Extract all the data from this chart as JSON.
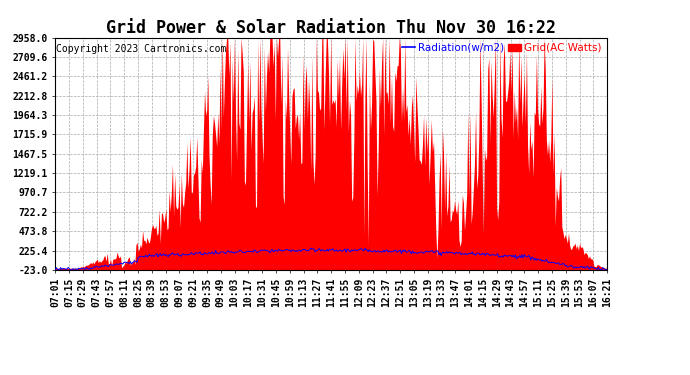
{
  "title": "Grid Power & Solar Radiation Thu Nov 30 16:22",
  "copyright": "Copyright 2023 Cartronics.com",
  "legend_radiation": "Radiation(w/m2)",
  "legend_grid": "Grid(AC Watts)",
  "radiation_color": "blue",
  "grid_color": "red",
  "background_color": "#ffffff",
  "plot_bg_color": "#ffffff",
  "grid_line_color": "#aaaaaa",
  "yticks": [
    -23.0,
    225.4,
    473.8,
    722.2,
    970.7,
    1219.1,
    1467.5,
    1715.9,
    1964.3,
    2212.8,
    2461.2,
    2709.6,
    2958.0
  ],
  "ylim": [
    -23.0,
    2958.0
  ],
  "title_fontsize": 12,
  "tick_fontsize": 7,
  "copyright_fontsize": 7,
  "time_labels": [
    "07:01",
    "07:15",
    "07:29",
    "07:43",
    "07:57",
    "08:11",
    "08:25",
    "08:39",
    "08:53",
    "09:07",
    "09:21",
    "09:35",
    "09:49",
    "10:03",
    "10:17",
    "10:31",
    "10:45",
    "10:59",
    "11:13",
    "11:27",
    "11:41",
    "11:55",
    "12:09",
    "12:23",
    "12:37",
    "12:51",
    "13:05",
    "13:19",
    "13:33",
    "13:47",
    "14:01",
    "14:15",
    "14:29",
    "14:43",
    "14:57",
    "15:11",
    "15:25",
    "15:39",
    "15:53",
    "16:07",
    "16:21"
  ]
}
